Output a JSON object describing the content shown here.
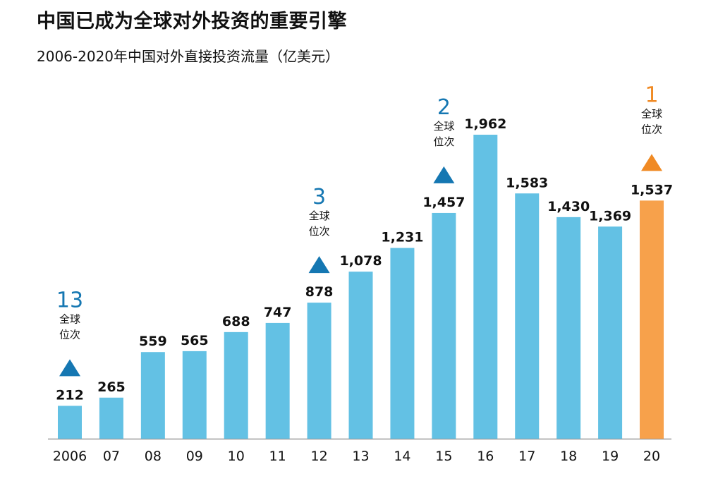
{
  "header": {
    "title": "中国已成为全球对外投资的重要引擎",
    "subtitle": "2006-2020年中国对外直接投资流量（亿美元）"
  },
  "colors": {
    "bar": "#63C1E4",
    "highlight": "#F7A14B",
    "rank_blue": "#1577B2",
    "rank_orange": "#F08A24",
    "axis": "#999999"
  },
  "chart_data": {
    "type": "bar",
    "title": "2006-2020年中国对外直接投资流量（亿美元）",
    "categories": [
      "2006",
      "07",
      "08",
      "09",
      "10",
      "11",
      "12",
      "13",
      "14",
      "15",
      "16",
      "17",
      "18",
      "19",
      "20"
    ],
    "values": [
      212,
      265,
      559,
      565,
      688,
      747,
      878,
      1078,
      1231,
      1457,
      1962,
      1583,
      1430,
      1369,
      1537
    ],
    "value_labels": [
      "212",
      "265",
      "559",
      "565",
      "688",
      "747",
      "878",
      "1,078",
      "1,231",
      "1,457",
      "1,962",
      "1,583",
      "1,430",
      "1,369",
      "1,537"
    ],
    "highlight_category": "20",
    "ylim": [
      0,
      2000
    ],
    "grid": false,
    "annotations": [
      {
        "category": "2006",
        "rank": "13",
        "caption_line1": "全球",
        "caption_line2": "位次",
        "marker": "up-triangle",
        "color": "blue"
      },
      {
        "category": "12",
        "rank": "3",
        "caption_line1": "全球",
        "caption_line2": "位次",
        "marker": "up-triangle",
        "color": "blue"
      },
      {
        "category": "15",
        "rank": "2",
        "caption_line1": "全球",
        "caption_line2": "位次",
        "marker": "up-triangle",
        "color": "blue"
      },
      {
        "category": "20",
        "rank": "1",
        "caption_line1": "全球",
        "caption_line2": "位次",
        "marker": "up-triangle",
        "color": "orange"
      }
    ]
  }
}
